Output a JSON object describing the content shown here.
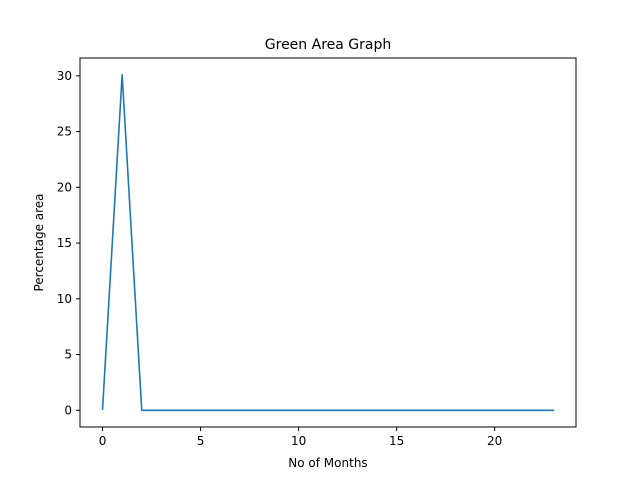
{
  "chart_data": {
    "type": "line",
    "title": "Green Area Graph",
    "xlabel": "No of Months",
    "ylabel": "Percentage area",
    "x": [
      0,
      1,
      2,
      3,
      4,
      5,
      6,
      7,
      8,
      9,
      10,
      11,
      12,
      13,
      14,
      15,
      16,
      17,
      18,
      19,
      20,
      21,
      22,
      23
    ],
    "series": [
      {
        "values": [
          0.1,
          30.1,
          0,
          0,
          0,
          0,
          0,
          0,
          0,
          0,
          0,
          0,
          0,
          0,
          0,
          0,
          0,
          0,
          0,
          0,
          0,
          0,
          0,
          0
        ],
        "color": "#1f77b4"
      }
    ],
    "xlim": [
      -1.15,
      24.15
    ],
    "ylim": [
      -1.5,
      31.6
    ],
    "xticks": [
      0,
      5,
      10,
      15,
      20
    ],
    "yticks": [
      0,
      5,
      10,
      15,
      20,
      25,
      30
    ],
    "grid": false
  }
}
